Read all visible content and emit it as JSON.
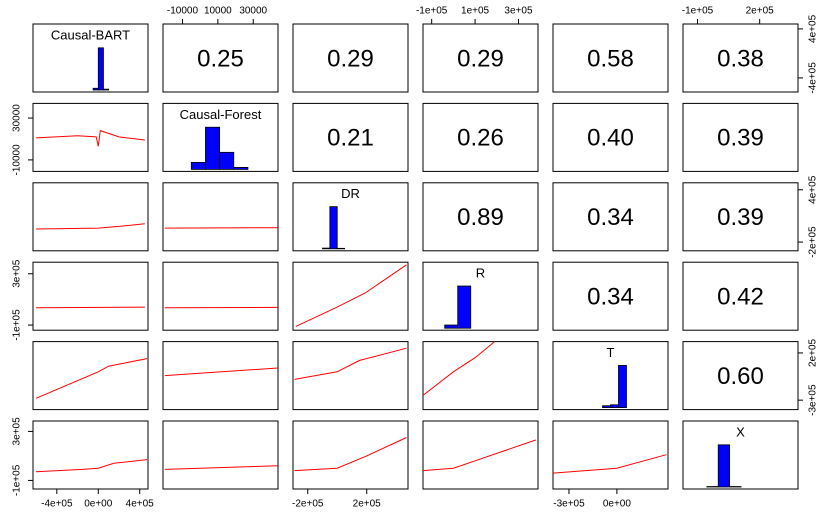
{
  "chart_data": {
    "type": "pairs",
    "variables": [
      {
        "name": "Causal-BART",
        "lim": [
          -630000,
          480000
        ],
        "xticks": [
          {
            "value": -400000,
            "label": "-4e+05"
          },
          {
            "value": 0,
            "label": "0e+00"
          },
          {
            "value": 400000,
            "label": "4e+05"
          }
        ],
        "yticks": [
          {
            "value": -400000,
            "label": "-4e+05"
          },
          {
            "value": 400000,
            "label": "4e+05"
          }
        ],
        "bins": [
          -50000,
          0,
          50000,
          100000
        ],
        "counts": [
          40,
          980,
          20
        ]
      },
      {
        "name": "Causal-Forest",
        "lim": [
          -21000,
          44000
        ],
        "xticks": [
          -10000,
          10000,
          30000
        ],
        "yticks": [
          -10000,
          30000
        ],
        "bins": [
          -5000,
          3000,
          11000,
          19000,
          27000
        ],
        "counts": [
          70,
          420,
          170,
          20
        ]
      },
      {
        "name": "DR",
        "lim": [
          -300000,
          480000
        ],
        "xticks": [
          {
            "value": -200000,
            "label": "-2e+05"
          },
          {
            "value": 200000,
            "label": "2e+05"
          }
        ],
        "yticks": [
          {
            "value": -200000,
            "label": "-2e+05"
          },
          {
            "value": 400000,
            "label": "4e+05"
          }
        ],
        "bins": [
          -100000,
          -50000,
          0,
          50000
        ],
        "counts": [
          15,
          900,
          10
        ]
      },
      {
        "name": "R",
        "lim": [
          -140000,
          390000
        ],
        "xticks": [
          {
            "value": -100000,
            "label": "-1e+05"
          },
          {
            "value": 100000,
            "label": "1e+05"
          },
          {
            "value": 300000,
            "label": "3e+05"
          }
        ],
        "yticks": [
          {
            "value": -100000,
            "label": "-1e+05"
          },
          {
            "value": 300000,
            "label": "3e+05"
          }
        ],
        "bins": [
          -40000,
          20000,
          80000
        ],
        "counts": [
          60,
          800
        ]
      },
      {
        "name": "T",
        "lim": [
          -400000,
          320000
        ],
        "xticks": [
          {
            "value": -300000,
            "label": "-3e+05"
          },
          {
            "value": 0,
            "label": "0e+00"
          }
        ],
        "yticks": [
          {
            "value": -300000,
            "label": "-3e+05"
          },
          {
            "value": 200000,
            "label": "2e+05"
          }
        ],
        "bins": [
          -90000,
          -40000,
          10000,
          60000
        ],
        "counts": [
          40,
          60,
          900
        ]
      },
      {
        "name": "X",
        "lim": [
          -170000,
          385000
        ],
        "xticks": [
          {
            "value": -100000,
            "label": "-1e+05"
          },
          {
            "value": 200000,
            "label": "2e+05"
          }
        ],
        "yticks": [
          {
            "value": -100000,
            "label": "-1e+05"
          },
          {
            "value": 300000,
            "label": "3e+05"
          }
        ],
        "bins": [
          -55000,
          0,
          55000,
          110000
        ],
        "counts": [
          10,
          900,
          10
        ]
      }
    ],
    "hist_color": "#0000ff",
    "smoother_color": "#ff0000",
    "correlations": {
      "values": [
        0.25,
        0.29,
        0.29,
        0.58,
        0.38,
        0.21,
        0.26,
        0.4,
        0.39,
        0.89,
        0.34,
        0.39,
        0.34,
        0.42,
        0.6
      ],
      "value_labels": [
        "0.25",
        "0.29",
        "0.29",
        "0.58",
        "0.38",
        "0.21",
        "0.26",
        "0.40",
        "0.39",
        "0.89",
        "0.34",
        "0.39",
        "0.34",
        "0.42",
        "0.60"
      ]
    },
    "smoothers": [
      {
        "x": [
          -600000,
          -200000,
          -20000,
          0,
          20000,
          200000,
          450000
        ],
        "y": [
          11000,
          13000,
          12000,
          3000,
          18000,
          12000,
          9000
        ]
      },
      {
        "x": [
          -600000,
          0,
          200000,
          450000
        ],
        "y": [
          -50000,
          -40000,
          -20000,
          10000
        ]
      },
      {
        "x": [
          -20000,
          44000
        ],
        "y": [
          -40000,
          -35000
        ]
      },
      {
        "x": [
          -600000,
          450000
        ],
        "y": [
          35000,
          40000
        ]
      },
      {
        "x": [
          -20000,
          44000
        ],
        "y": [
          35000,
          38000
        ]
      },
      {
        "x": [
          -280000,
          0,
          190000,
          470000
        ],
        "y": [
          -110000,
          40000,
          150000,
          370000
        ]
      },
      {
        "x": [
          -600000,
          0,
          100000,
          470000
        ],
        "y": [
          -280000,
          0,
          60000,
          140000
        ]
      },
      {
        "x": [
          -20000,
          44000
        ],
        "y": [
          -40000,
          40000
        ]
      },
      {
        "x": [
          -290000,
          0,
          150000,
          470000
        ],
        "y": [
          -80000,
          0,
          120000,
          250000
        ]
      },
      {
        "x": [
          -140000,
          0,
          100000,
          190000
        ],
        "y": [
          -250000,
          0,
          150000,
          320000
        ]
      },
      {
        "x": [
          -600000,
          -150000,
          0,
          150000,
          470000
        ],
        "y": [
          -30000,
          -10000,
          0,
          40000,
          70000
        ]
      },
      {
        "x": [
          -20000,
          44000
        ],
        "y": [
          -10000,
          20000
        ]
      },
      {
        "x": [
          -290000,
          0,
          200000,
          470000
        ],
        "y": [
          -20000,
          0,
          100000,
          250000
        ]
      },
      {
        "x": [
          -140000,
          0,
          100000,
          380000
        ],
        "y": [
          -20000,
          0,
          60000,
          230000
        ]
      },
      {
        "x": [
          -400000,
          0,
          310000
        ],
        "y": [
          -40000,
          0,
          110000
        ]
      }
    ]
  }
}
